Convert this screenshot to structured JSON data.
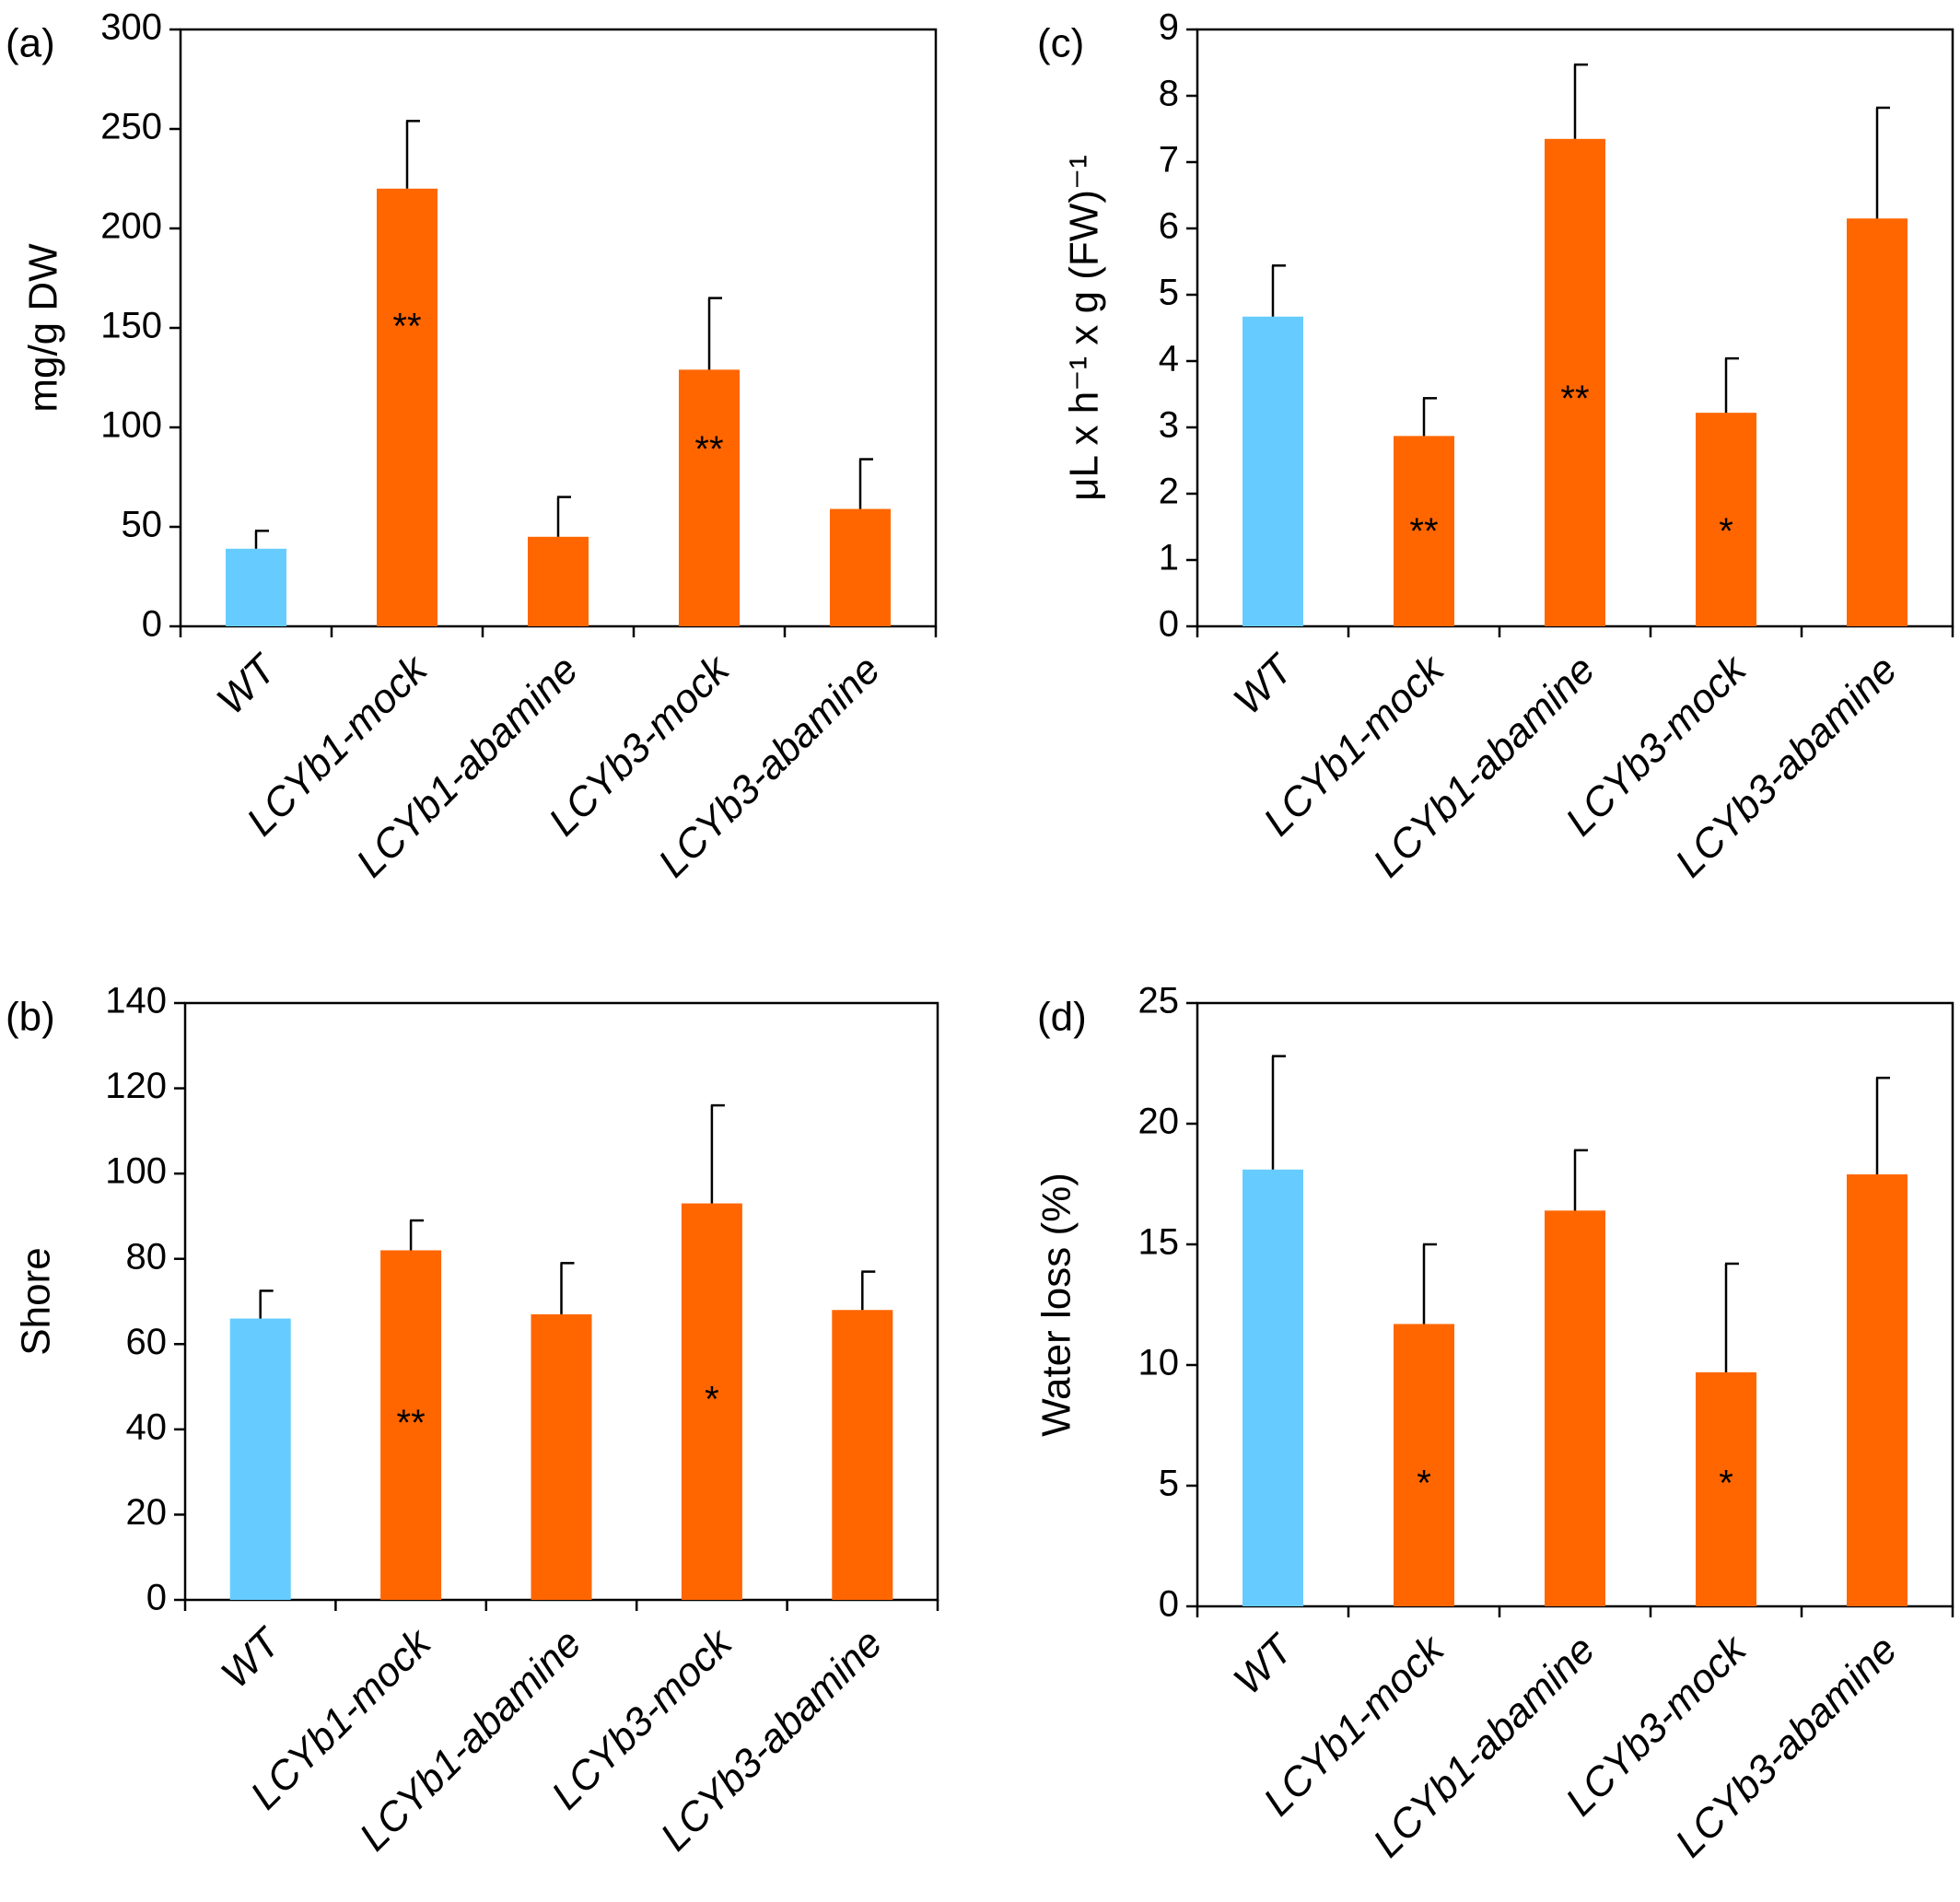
{
  "colors": {
    "wt": "#66ccff",
    "transgenic": "#ff6600",
    "axis": "#000000"
  },
  "categories": [
    "WT",
    "LCYb1-mock",
    "LCYb1-abamine",
    "LCYb3-mock",
    "LCYb3-abamine"
  ],
  "chart_data": [
    {
      "panel": "(a)",
      "type": "bar",
      "ylabel": "mg/g DW",
      "ylim": [
        0,
        300
      ],
      "yticks": [
        "0",
        "50",
        "100",
        "150",
        "200",
        "250",
        "300"
      ],
      "categories": [
        "WT",
        "LCYb1-mock",
        "LCYb1-abamine",
        "LCYb3-mock",
        "LCYb3-abamine"
      ],
      "values": [
        39,
        220,
        45,
        129,
        59
      ],
      "errors": [
        9,
        34,
        20,
        36,
        25
      ],
      "significance": [
        "",
        "**",
        "",
        "**",
        ""
      ],
      "colors": [
        "#66ccff",
        "#ff6600",
        "#ff6600",
        "#ff6600",
        "#ff6600"
      ]
    },
    {
      "panel": "(b)",
      "type": "bar",
      "ylabel": "Shore",
      "ylim": [
        0,
        140
      ],
      "yticks": [
        "0",
        "20",
        "40",
        "60",
        "80",
        "100",
        "120",
        "140"
      ],
      "categories": [
        "WT",
        "LCYb1-mock",
        "LCYb1-abamine",
        "LCYb3-mock",
        "LCYb3-abamine"
      ],
      "values": [
        66,
        82,
        67,
        93,
        68
      ],
      "errors": [
        6.5,
        7,
        12,
        23,
        9
      ],
      "significance": [
        "",
        "**",
        "",
        "*",
        ""
      ],
      "colors": [
        "#66ccff",
        "#ff6600",
        "#ff6600",
        "#ff6600",
        "#ff6600"
      ]
    },
    {
      "panel": "(c)",
      "type": "bar",
      "ylabel": "μL x h⁻¹ x g (FW)⁻¹",
      "ylim": [
        0,
        9
      ],
      "yticks": [
        "0",
        "1",
        "2",
        "3",
        "4",
        "5",
        "6",
        "7",
        "8",
        "9"
      ],
      "categories": [
        "WT",
        "LCYb1-mock",
        "LCYb1-abamine",
        "LCYb3-mock",
        "LCYb3-abamine"
      ],
      "values": [
        4.67,
        2.87,
        7.35,
        3.22,
        6.15
      ],
      "errors": [
        0.77,
        0.57,
        1.12,
        0.82,
        1.67
      ],
      "significance": [
        "",
        "**",
        "**",
        "*",
        ""
      ],
      "colors": [
        "#66ccff",
        "#ff6600",
        "#ff6600",
        "#ff6600",
        "#ff6600"
      ]
    },
    {
      "panel": "(d)",
      "type": "bar",
      "ylabel": "Water loss (%)",
      "ylim": [
        0,
        25
      ],
      "yticks": [
        "0",
        "5",
        "10",
        "15",
        "20",
        "25"
      ],
      "categories": [
        "WT",
        "LCYb1-mock",
        "LCYb1-abamine",
        "LCYb3-mock",
        "LCYb3-abamine"
      ],
      "values": [
        18.1,
        11.7,
        16.4,
        9.7,
        17.9
      ],
      "errors": [
        4.7,
        3.3,
        2.5,
        4.5,
        4.0
      ],
      "significance": [
        "",
        "*",
        "",
        "*",
        ""
      ],
      "colors": [
        "#66ccff",
        "#ff6600",
        "#ff6600",
        "#ff6600",
        "#ff6600"
      ]
    }
  ]
}
